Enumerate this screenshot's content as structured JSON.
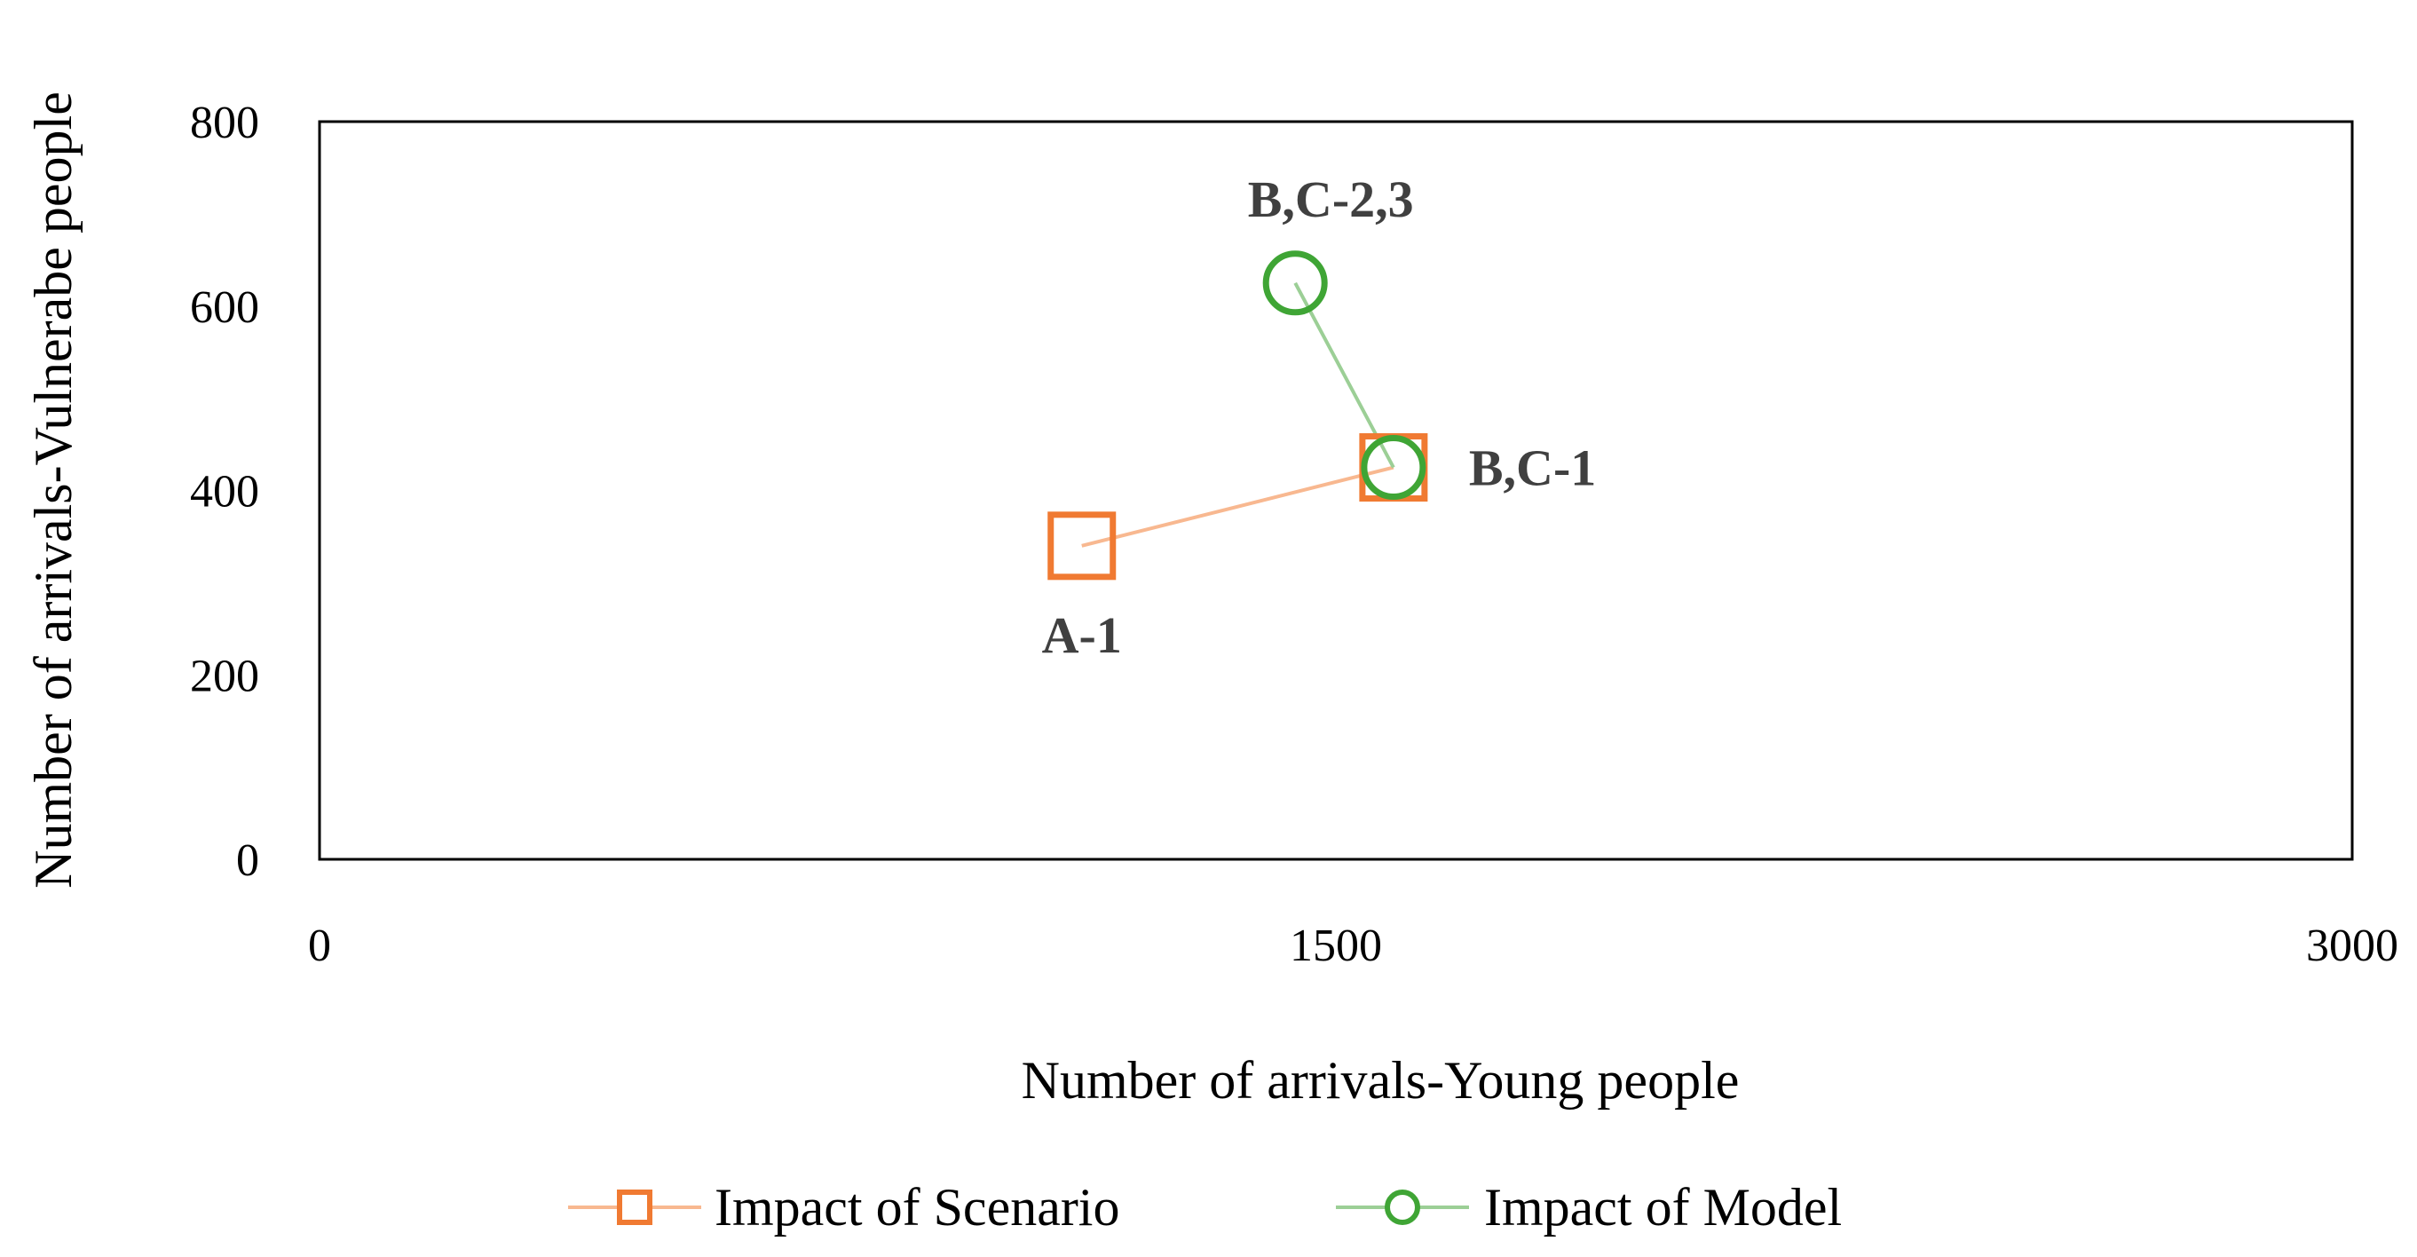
{
  "chart_data": {
    "type": "scatter",
    "title": "",
    "xlabel": "Number of arrivals-Young people",
    "ylabel": "Number of arrivals-Vulnerabe people",
    "xlim": [
      0,
      3000
    ],
    "ylim": [
      0,
      800
    ],
    "x_ticks": [
      "0",
      "1500",
      "3000"
    ],
    "y_ticks": [
      "0",
      "200",
      "400",
      "600",
      "800"
    ],
    "grid": false,
    "legend_position": "bottom",
    "series": [
      {
        "name": "Impact of Scenario",
        "color": "#F07A32",
        "line_color": "#F8B890",
        "marker": "square",
        "points": [
          {
            "x": 1125,
            "y": 340
          },
          {
            "x": 1585,
            "y": 425
          }
        ]
      },
      {
        "name": "Impact of Model",
        "color": "#3FA535",
        "line_color": "#9CCF96",
        "marker": "circle",
        "points": [
          {
            "x": 1440,
            "y": 625
          },
          {
            "x": 1585,
            "y": 425
          }
        ]
      }
    ],
    "annotations": [
      {
        "text": "A-1",
        "x": 1125,
        "y": 340
      },
      {
        "text": "B,C-1",
        "x": 1585,
        "y": 425
      },
      {
        "text": "B,C-2,3",
        "x": 1440,
        "y": 625
      }
    ]
  }
}
